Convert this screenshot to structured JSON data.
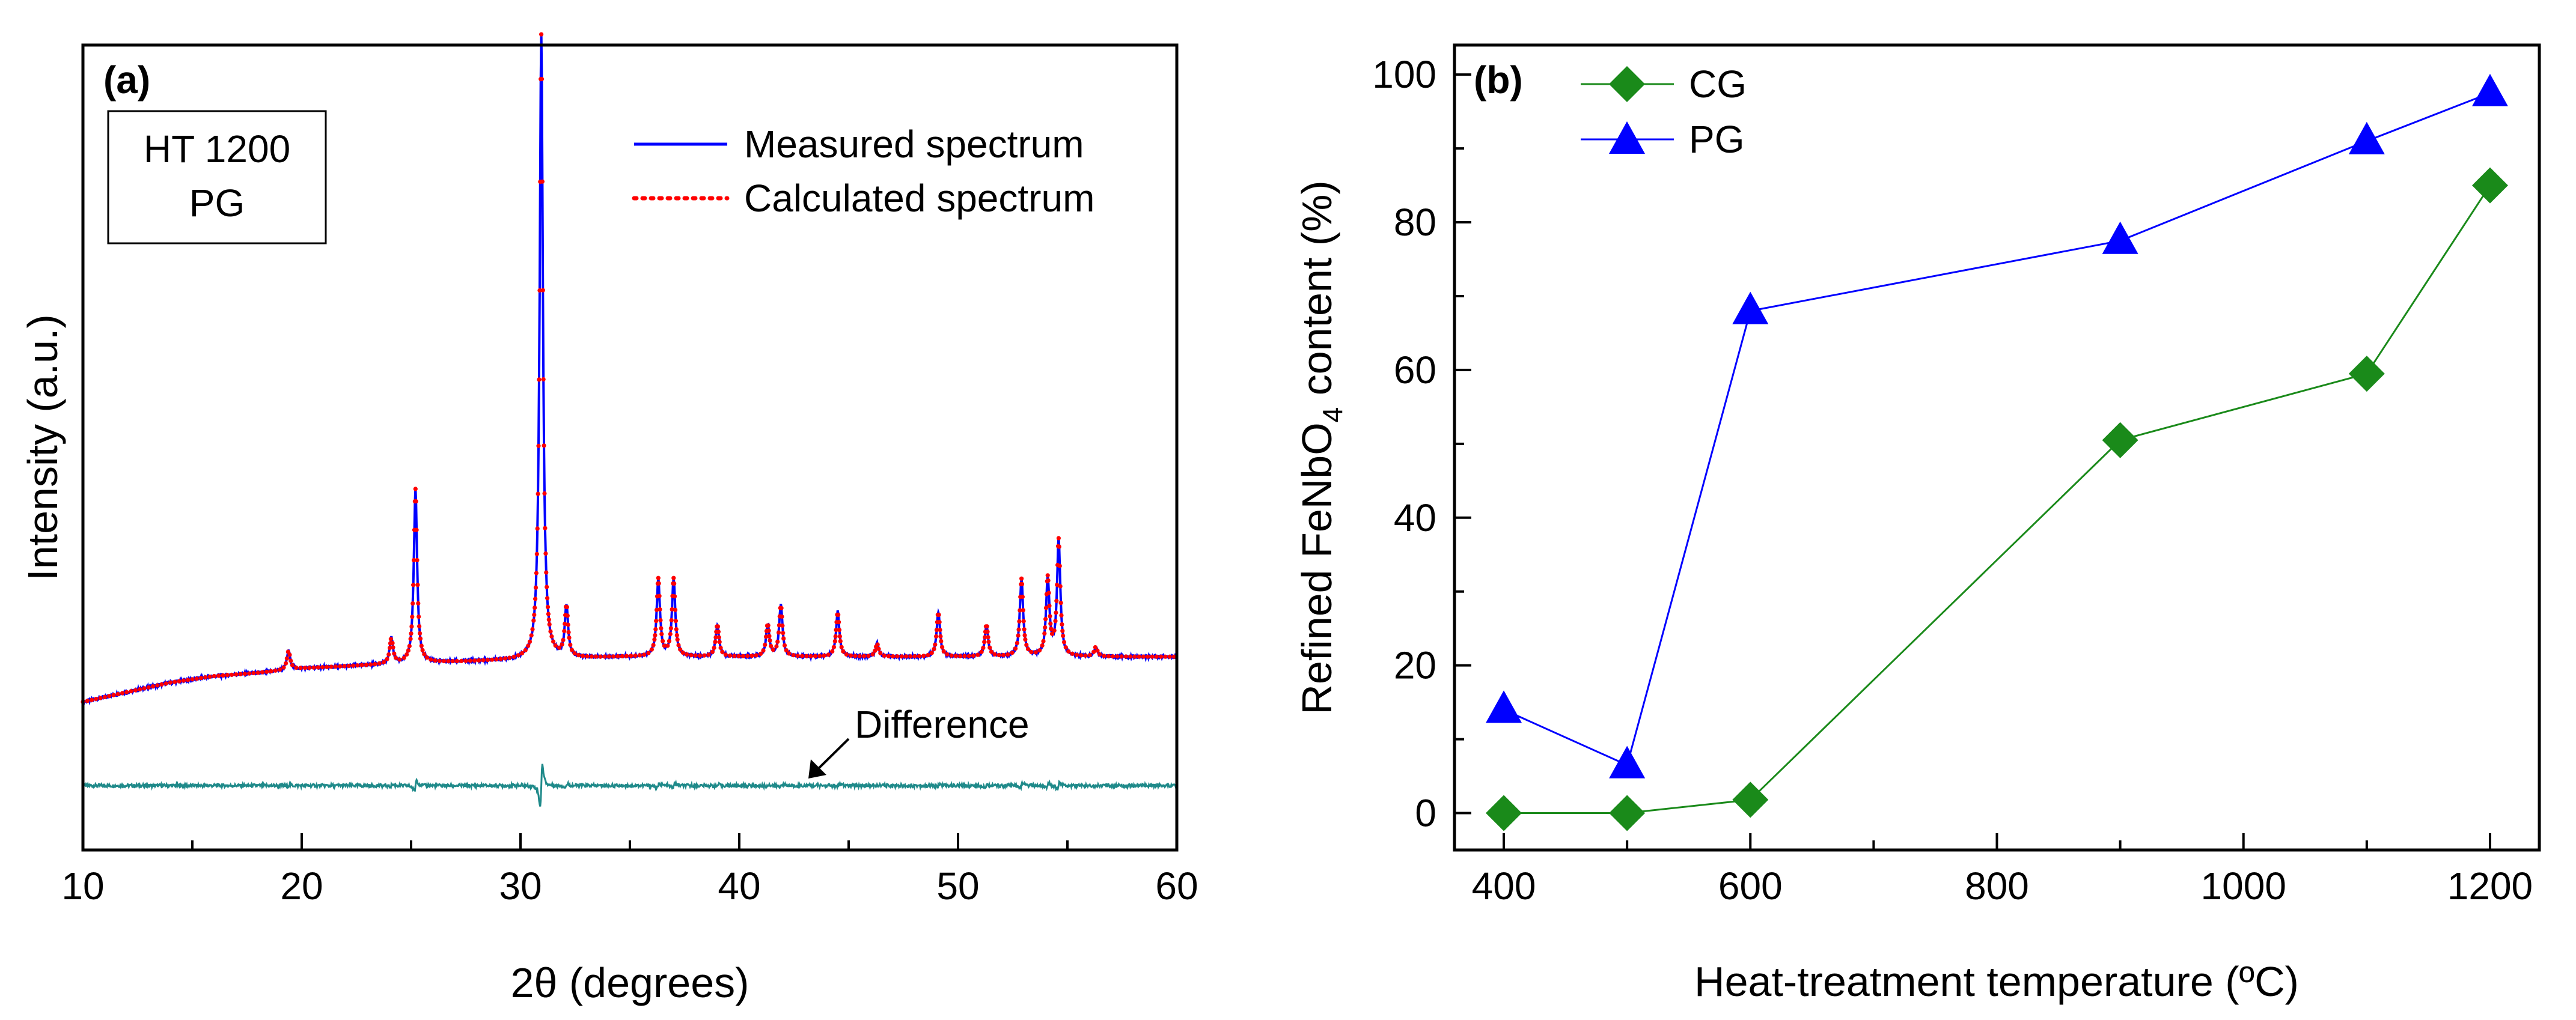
{
  "chart_data": [
    {
      "type": "line",
      "panel_label": "(a)",
      "xlabel": "2θ (degrees)",
      "ylabel": "Intensity (a.u.)",
      "xlim": [
        10,
        60
      ],
      "ylim": [
        -0.2,
        1.05
      ],
      "x_ticks": [
        10,
        20,
        30,
        40,
        50,
        60
      ],
      "y_ticks_shown": false,
      "inset_box": [
        "HT 1200",
        "PG"
      ],
      "annotation": "Difference",
      "legend": {
        "position": "top-right",
        "entries": [
          {
            "label": "Measured spectrum",
            "style": "solid",
            "color": "#0000ff"
          },
          {
            "label": "Calculated spectrum",
            "style": "dotted",
            "color": "#ff0000"
          }
        ]
      },
      "baseline": [
        [
          10,
          0.03
        ],
        [
          12,
          0.045
        ],
        [
          14,
          0.06
        ],
        [
          16,
          0.07
        ],
        [
          18,
          0.075
        ],
        [
          20,
          0.082
        ],
        [
          25,
          0.09
        ],
        [
          30,
          0.095
        ],
        [
          35,
          0.1
        ],
        [
          40,
          0.1
        ],
        [
          45,
          0.1
        ],
        [
          50,
          0.1
        ],
        [
          55,
          0.1
        ],
        [
          60,
          0.1
        ]
      ],
      "peaks": [
        {
          "x": 19.4,
          "h": 0.03
        },
        {
          "x": 24.1,
          "h": 0.04
        },
        {
          "x": 25.2,
          "h": 0.27
        },
        {
          "x": 30.95,
          "h": 0.97
        },
        {
          "x": 32.1,
          "h": 0.08
        },
        {
          "x": 36.3,
          "h": 0.12
        },
        {
          "x": 37.0,
          "h": 0.12
        },
        {
          "x": 39.0,
          "h": 0.05
        },
        {
          "x": 41.3,
          "h": 0.05
        },
        {
          "x": 41.9,
          "h": 0.08
        },
        {
          "x": 44.5,
          "h": 0.07
        },
        {
          "x": 46.3,
          "h": 0.02
        },
        {
          "x": 49.1,
          "h": 0.07
        },
        {
          "x": 51.3,
          "h": 0.05
        },
        {
          "x": 52.9,
          "h": 0.12
        },
        {
          "x": 54.1,
          "h": 0.12
        },
        {
          "x": 54.6,
          "h": 0.18
        },
        {
          "x": 56.3,
          "h": 0.015
        }
      ],
      "difference_offset": -0.1,
      "difference_color": "#1f8a8a"
    },
    {
      "type": "line",
      "panel_label": "(b)",
      "xlabel": "Heat-treatment temperature (ºC)",
      "ylabel_pre": "Refined FeNbO",
      "ylabel_sub": "4",
      "ylabel_post": " content (%)",
      "xlim": [
        360,
        1240
      ],
      "ylim": [
        -5,
        104
      ],
      "x_ticks": [
        400,
        600,
        800,
        1000,
        1200
      ],
      "x_minor_ticks": [
        500,
        700,
        900,
        1100
      ],
      "y_ticks": [
        0,
        20,
        40,
        60,
        80,
        100
      ],
      "y_minor_ticks": [
        10,
        30,
        50,
        70,
        90
      ],
      "legend_position": "top-left",
      "series": [
        {
          "name": "CG",
          "marker": "diamond",
          "color": "#1a8a1a",
          "x": [
            400,
            500,
            600,
            900,
            1100,
            1200
          ],
          "y": [
            0,
            0,
            1.8,
            50.5,
            59.5,
            85
          ]
        },
        {
          "name": "PG",
          "marker": "triangle",
          "color": "#0000ff",
          "x": [
            400,
            500,
            600,
            900,
            1100,
            1200
          ],
          "y": [
            14,
            6.5,
            68,
            77.5,
            91,
            97.5
          ]
        }
      ]
    }
  ]
}
